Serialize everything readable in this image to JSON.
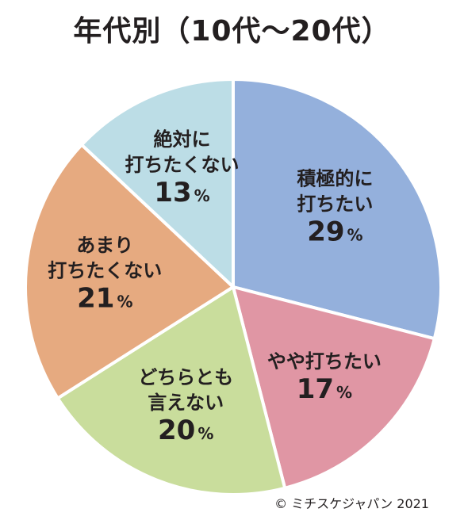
{
  "chart_data": {
    "type": "pie",
    "title": "年代別（10代～20代）",
    "slices": [
      {
        "label_lines": [
          "積極的に",
          "打ちたい"
        ],
        "value": 29,
        "color": "#94b0dc"
      },
      {
        "label_lines": [
          "やや打ちたい"
        ],
        "value": 17,
        "color": "#e096a4"
      },
      {
        "label_lines": [
          "どちらとも",
          "言えない"
        ],
        "value": 20,
        "color": "#c9dd9c"
      },
      {
        "label_lines": [
          "あまり",
          "打ちたくない"
        ],
        "value": 21,
        "color": "#e6aa80"
      },
      {
        "label_lines": [
          "絶対に",
          "打ちたくない"
        ],
        "value": 13,
        "color": "#bcdde6"
      }
    ],
    "unit": "%",
    "start": "12 o'clock, clockwise"
  },
  "copyright": "© ミチスケジャパン 2021"
}
